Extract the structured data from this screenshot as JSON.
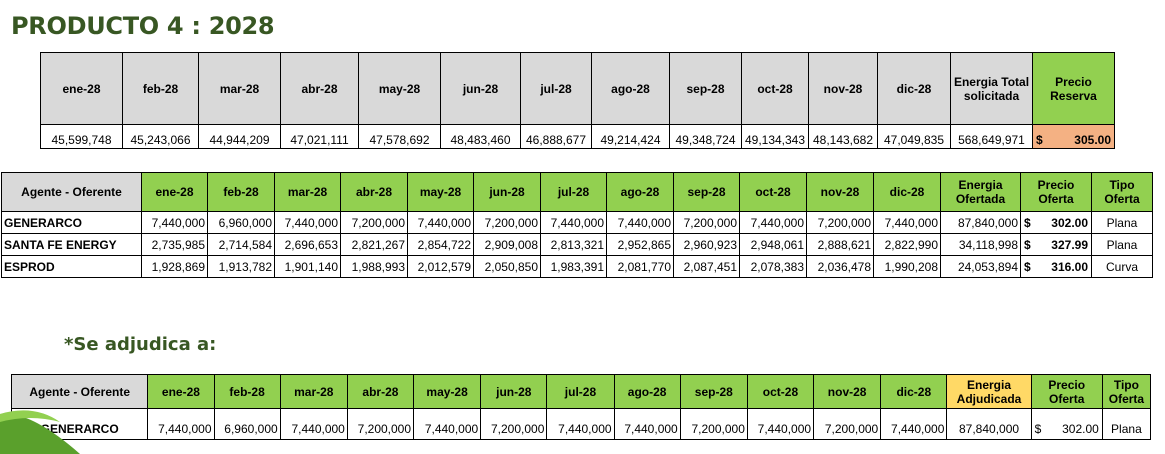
{
  "title": "PRODUCTO 4 : 2028",
  "subtitle": "*Se adjudica a:",
  "months": [
    "ene-28",
    "feb-28",
    "mar-28",
    "abr-28",
    "may-28",
    "jun-28",
    "jul-28",
    "ago-28",
    "sep-28",
    "oct-28",
    "nov-28",
    "dic-28"
  ],
  "reserve": {
    "total_header": "Energia Total solicitada",
    "price_header": "Precio Reserva",
    "values": [
      "45,599,748",
      "45,243,066",
      "44,944,209",
      "47,021,111",
      "47,578,692",
      "48,483,460",
      "46,888,677",
      "49,214,424",
      "49,348,724",
      "49,134,343",
      "48,143,682",
      "47,049,835"
    ],
    "total": "568,649,971",
    "currency": "$",
    "price": "305.00"
  },
  "offers": {
    "agent_header": "Agente - Oferente",
    "energy_header": "Energia Ofertada",
    "price_header": "Precio Oferta",
    "type_header": "Tipo Oferta",
    "rows": [
      {
        "agent": "GENERARCO",
        "values": [
          "7,440,000",
          "6,960,000",
          "7,440,000",
          "7,200,000",
          "7,440,000",
          "7,200,000",
          "7,440,000",
          "7,440,000",
          "7,200,000",
          "7,440,000",
          "7,200,000",
          "7,440,000"
        ],
        "total": "87,840,000",
        "currency": "$",
        "price": "302.00",
        "type": "Plana"
      },
      {
        "agent": "SANTA FE ENERGY",
        "values": [
          "2,735,985",
          "2,714,584",
          "2,696,653",
          "2,821,267",
          "2,854,722",
          "2,909,008",
          "2,813,321",
          "2,952,865",
          "2,960,923",
          "2,948,061",
          "2,888,621",
          "2,822,990"
        ],
        "total": "34,118,998",
        "currency": "$",
        "price": "327.99",
        "type": "Plana"
      },
      {
        "agent": "ESPROD",
        "values": [
          "1,928,869",
          "1,913,782",
          "1,901,140",
          "1,988,993",
          "2,012,579",
          "2,050,850",
          "1,983,391",
          "2,081,770",
          "2,087,451",
          "2,078,383",
          "2,036,478",
          "1,990,208"
        ],
        "total": "24,053,894",
        "currency": "$",
        "price": "316.00",
        "type": "Curva"
      }
    ]
  },
  "award": {
    "agent_header": "Agente - Oferente",
    "energy_header": "Energia Adjudicada",
    "price_header": "Precio Oferta",
    "type_header": "Tipo Oferta",
    "row": {
      "agent": "GENERARCO",
      "values": [
        "7,440,000",
        "6,960,000",
        "7,440,000",
        "7,200,000",
        "7,440,000",
        "7,200,000",
        "7,440,000",
        "7,440,000",
        "7,200,000",
        "7,440,000",
        "7,200,000",
        "7,440,000"
      ],
      "total": "87,840,000",
      "currency": "$",
      "price": "302.00",
      "type": "Plana"
    }
  },
  "colors": {
    "title": "#385723",
    "grey_header": "#d9d9d9",
    "green_header": "#92d050",
    "reserve_price": "#f4b183",
    "awarded_energy": "#ffd966"
  }
}
